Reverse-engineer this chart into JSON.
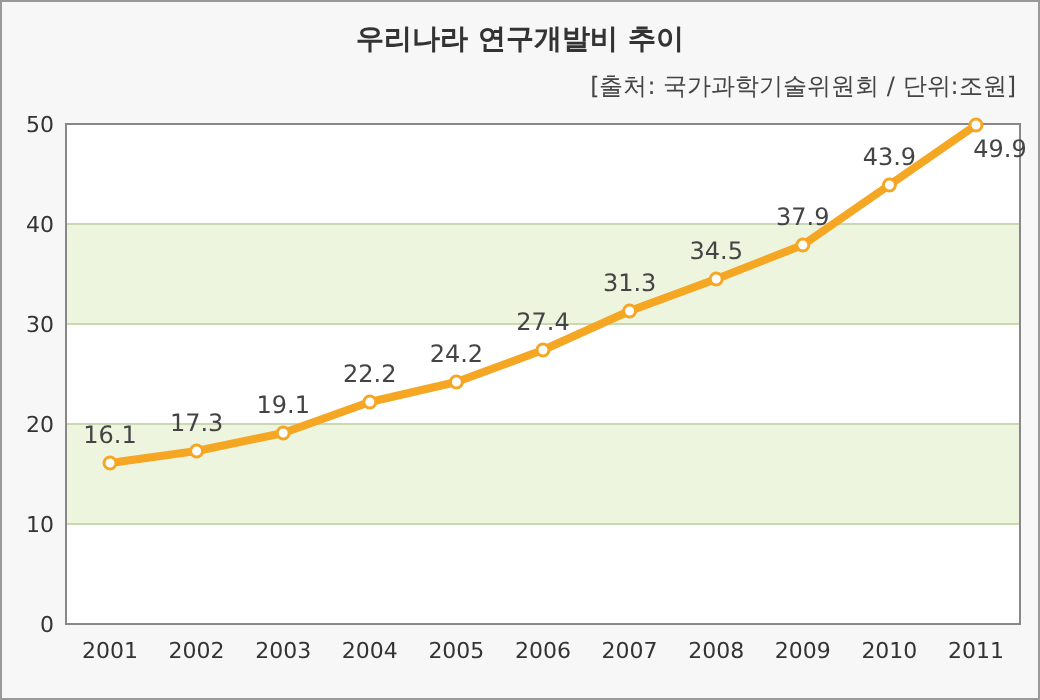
{
  "chart_data": {
    "type": "line",
    "title": "우리나라 연구개발비 추이",
    "subtitle": "[출처: 국가과학기술위원회 / 단위:조원]",
    "categories": [
      "2001",
      "2002",
      "2003",
      "2004",
      "2005",
      "2006",
      "2007",
      "2008",
      "2009",
      "2010",
      "2011"
    ],
    "series": [
      {
        "color": "#f5a623",
        "values": [
          16.1,
          17.3,
          19.1,
          22.2,
          24.2,
          27.4,
          31.3,
          34.5,
          37.9,
          43.9,
          49.9
        ]
      }
    ],
    "ylim": [
      0,
      50
    ],
    "yticks": [
      0,
      10,
      20,
      30,
      40,
      50
    ],
    "grid": "y",
    "marker": "circle",
    "line_style": "solid",
    "data_labels": true,
    "bands": [
      {
        "axis": "y",
        "from": 10,
        "to": 20,
        "color": "#eef5df"
      },
      {
        "axis": "y",
        "from": 30,
        "to": 40,
        "color": "#eef5df"
      }
    ]
  }
}
